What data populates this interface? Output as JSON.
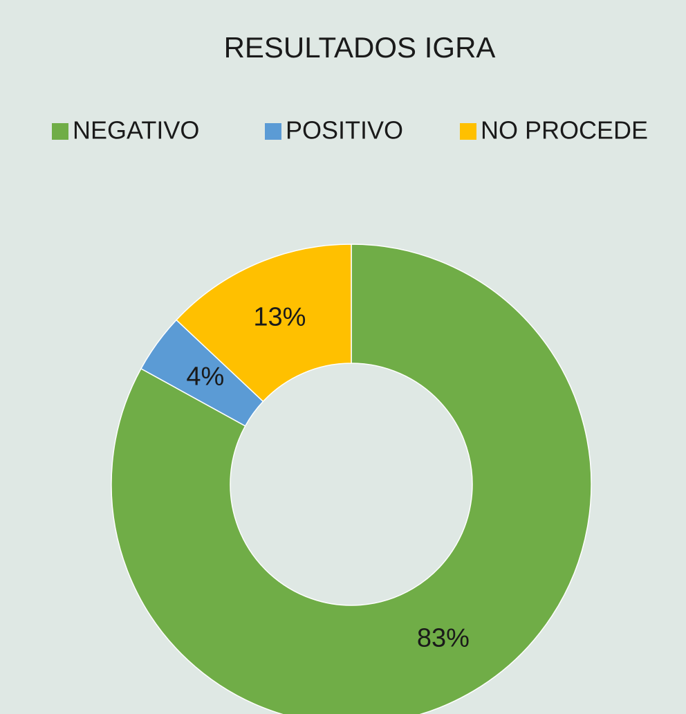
{
  "chart_data": {
    "type": "donut",
    "title": "RESULTADOS IGRA",
    "categories": [
      "NEGATIVO",
      "POSITIVO",
      "NO PROCEDE"
    ],
    "values": [
      83,
      4,
      13
    ],
    "value_labels": [
      "83%",
      "4%",
      "13%"
    ],
    "colors": [
      "#70ad47",
      "#5b9bd5",
      "#ffc000"
    ],
    "legend": "top"
  }
}
